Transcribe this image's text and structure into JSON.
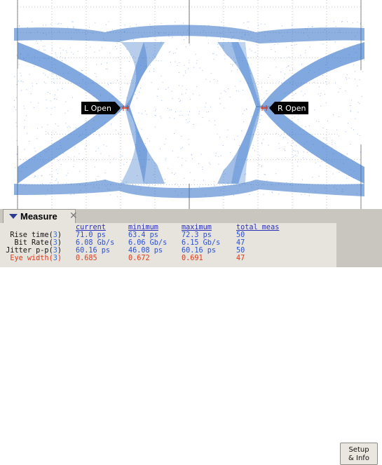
{
  "scope": {
    "markers": {
      "left": "L Open",
      "right": "R Open"
    },
    "colors": {
      "trace": "#2f6fc9",
      "background": "#ffffff",
      "grid": "#9a9a9a",
      "marker_box": "#000000",
      "marker_tick": "#e03010"
    }
  },
  "measure_panel": {
    "title": "Measure",
    "close_icon": "close-icon",
    "columns": [
      "current",
      "minimum",
      "maximum",
      "total meas"
    ],
    "rows": [
      {
        "label": "Rise time",
        "source": "3",
        "current": "71.0 ps",
        "minimum": "63.4 ps",
        "maximum": "72.3 ps",
        "total": "50",
        "highlight": false
      },
      {
        "label": "Bit Rate",
        "source": "3",
        "current": "6.08 Gb/s",
        "minimum": "6.06 Gb/s",
        "maximum": "6.15 Gb/s",
        "total": "47",
        "highlight": false
      },
      {
        "label": "Jitter p-p",
        "source": "3",
        "current": "60.16 ps",
        "minimum": "46.08 ps",
        "maximum": "60.16 ps",
        "total": "50",
        "highlight": false
      },
      {
        "label": "Eye width",
        "source": "3",
        "current": "0.685",
        "minimum": "0.672",
        "maximum": "0.691",
        "total": "47",
        "highlight": true
      }
    ],
    "setup_button": {
      "line1": "Setup",
      "line2": "& Info"
    }
  }
}
